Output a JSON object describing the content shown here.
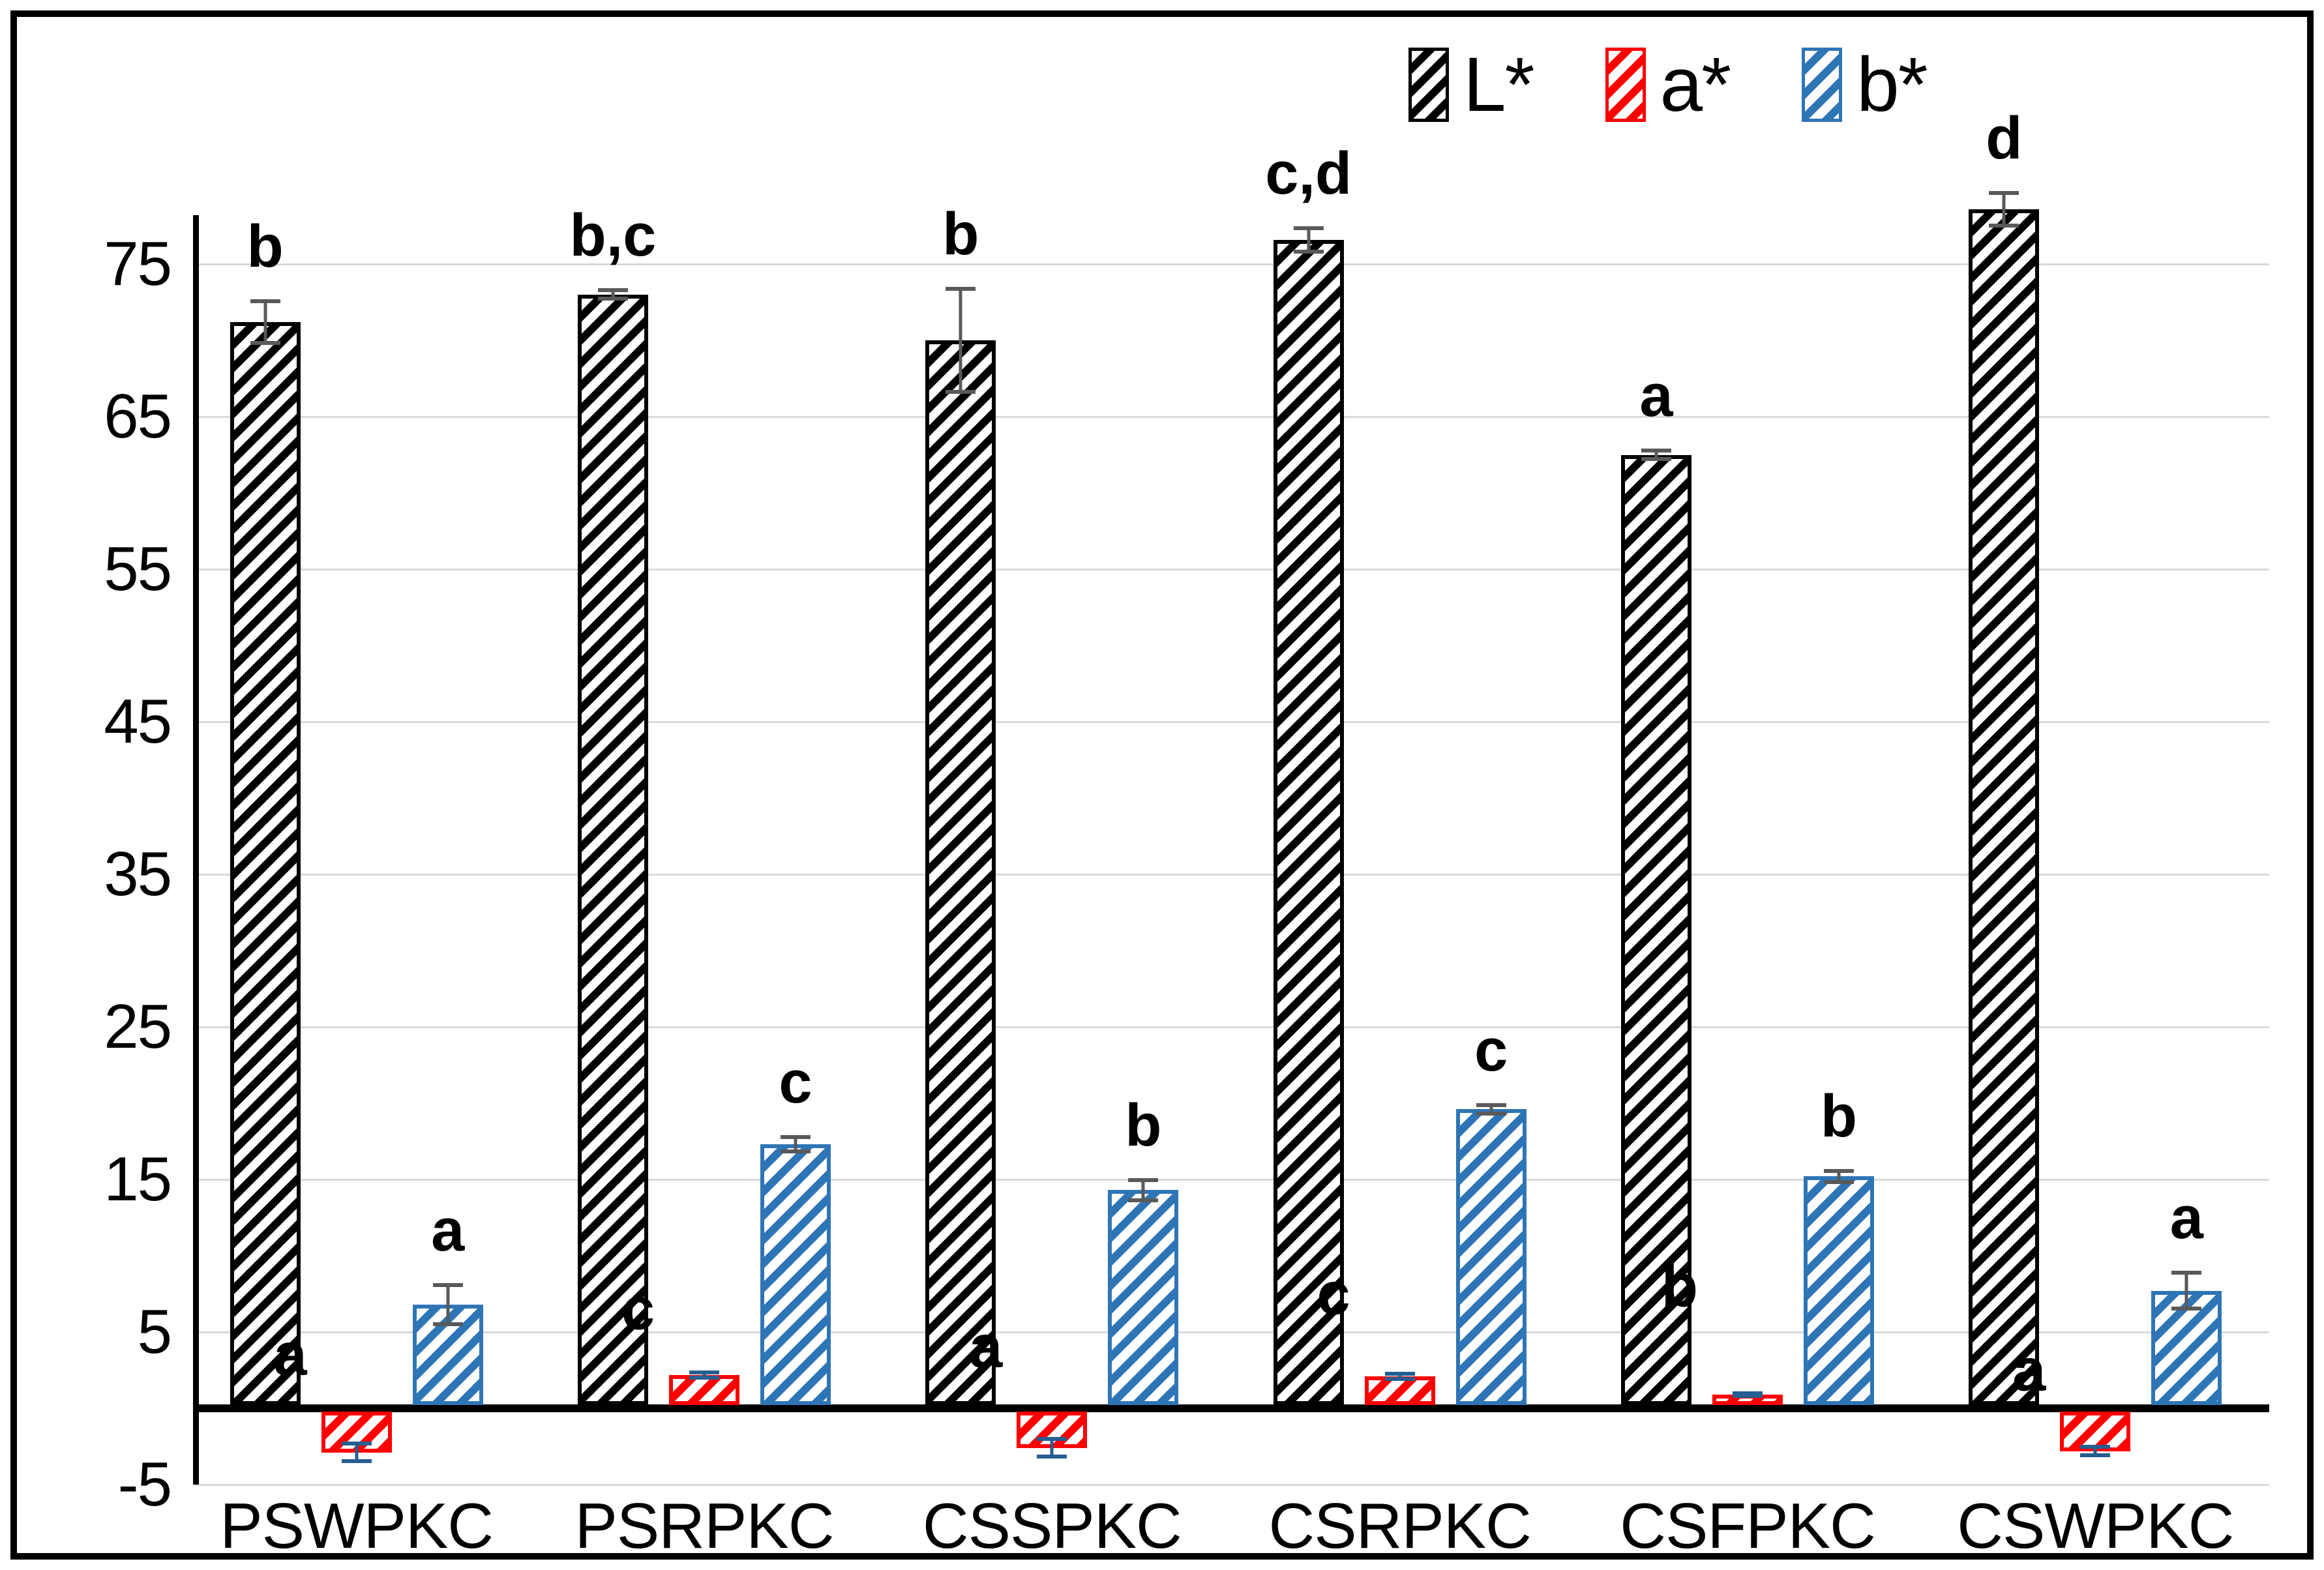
{
  "chart_data": {
    "type": "bar",
    "title": "",
    "xlabel": "",
    "ylabel": "",
    "categories": [
      "PSWPKC",
      "PSRPKC",
      "CSSPKC",
      "CSRPKC",
      "CSFPKC",
      "CSWPKC"
    ],
    "series": [
      {
        "name": "L*",
        "color": "#000000",
        "error_color": "#595959",
        "values": [
          71.2,
          73.0,
          70.0,
          76.6,
          62.5,
          78.6
        ],
        "errors": [
          1.5,
          0.4,
          3.5,
          0.9,
          0.4,
          1.2
        ],
        "letters": [
          "b",
          "b,c",
          "b",
          "c,d",
          "a",
          "d"
        ]
      },
      {
        "name": "a*",
        "color": "#ff0000",
        "error_color": "#255e91",
        "values": [
          -2.9,
          2.2,
          -2.6,
          2.1,
          0.9,
          -2.8
        ],
        "errors": [
          0.7,
          0.3,
          0.7,
          0.3,
          0.2,
          0.4
        ],
        "letters": [
          "a",
          "c",
          "a",
          "c",
          "b",
          "a"
        ],
        "letter_anchors": [
          3.5,
          6.5,
          4.0,
          7.5,
          8.0,
          2.5
        ]
      },
      {
        "name": "b*",
        "color": "#2e75b6",
        "error_color": "#595959",
        "values": [
          6.8,
          17.3,
          14.3,
          19.6,
          15.2,
          7.7
        ],
        "errors": [
          1.4,
          0.6,
          0.8,
          0.4,
          0.5,
          1.3
        ],
        "letters": [
          "a",
          "c",
          "b",
          "c",
          "b",
          "a"
        ]
      }
    ],
    "ylim": [
      -5,
      79
    ],
    "yticks": [
      75,
      65,
      55,
      45,
      35,
      25,
      15,
      5,
      -5
    ],
    "grid": true,
    "zero_line": true,
    "legend_position": "top-right",
    "legend_labels": [
      "L*",
      "a*",
      "b*"
    ]
  }
}
